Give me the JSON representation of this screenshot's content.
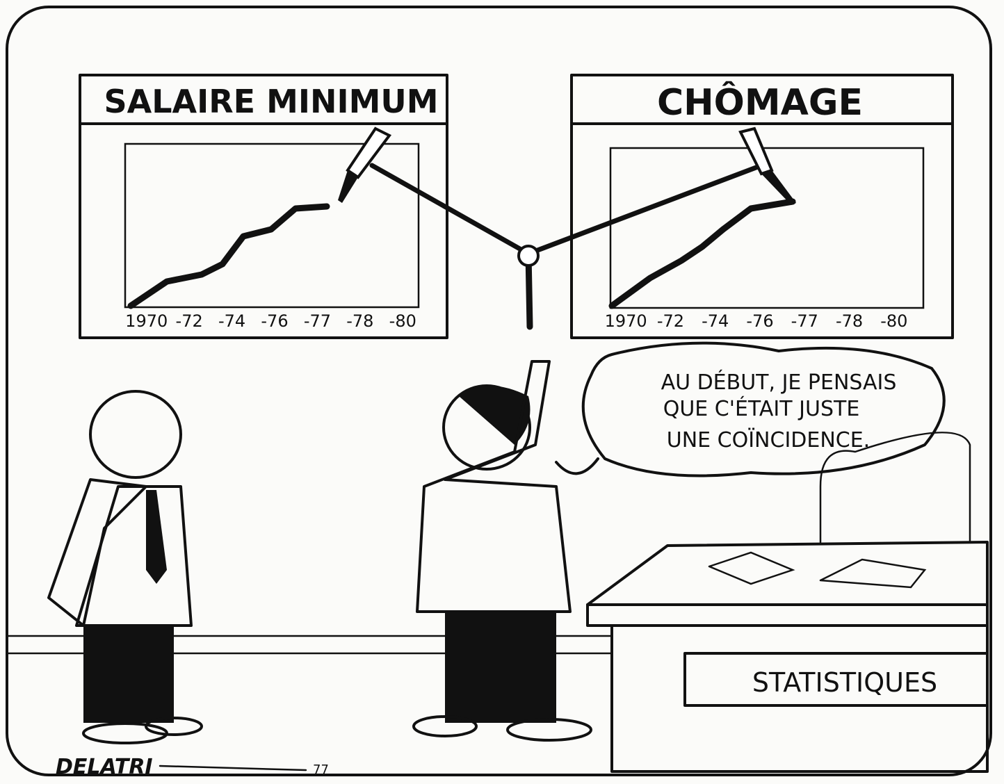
{
  "panels": [
    {
      "title": "SALAIRE MINIMUM",
      "ticks": [
        "1970",
        "-72",
        "-74",
        "-76",
        "-77",
        "-78",
        "-80"
      ]
    },
    {
      "title": "CHÔMAGE",
      "ticks": [
        "1970",
        "-72",
        "-74",
        "-76",
        "-77",
        "-78",
        "-80"
      ]
    }
  ],
  "bubble": {
    "lines": [
      "AU DÉBUT, JE PENSAIS",
      "QUE C'ÉTAIT JUSTE",
      "UNE COÏNCIDENCE."
    ]
  },
  "desk": {
    "sign": "STATISTIQUES"
  },
  "signature": {
    "name": "DELATRI",
    "year": "77"
  }
}
